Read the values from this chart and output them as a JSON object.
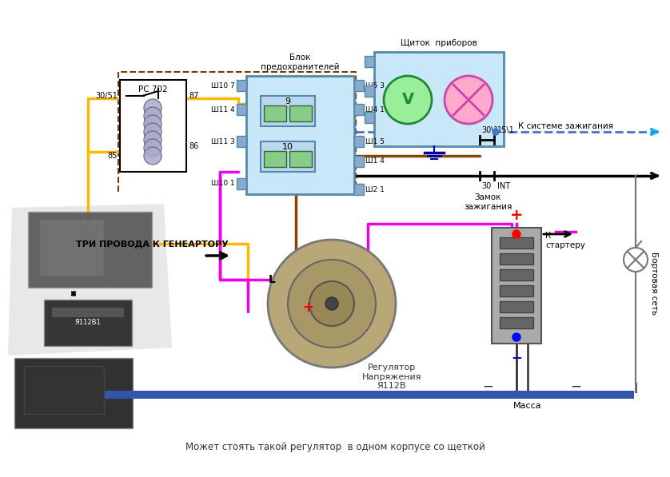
{
  "bg_color": "#ffffff",
  "fig_width": 8.38,
  "fig_height": 5.97,
  "text_blok": "Блок\nпредохранителей",
  "text_schitok": "Щиток  приборов",
  "text_relay": "РС 702",
  "text_tri": "ТРИ ПРОВОДА К ГЕНЕАРТОРУ",
  "text_regulyator": "Регулятор\nНапряжения\nЯ112В",
  "text_massa": "Масса",
  "text_zamok_label": "Замок\nзажигания",
  "text_k_sisteme": "К системе зажигания",
  "text_k_starteru": "К\nстартеру",
  "text_bortovaya": "Бортовая сеть",
  "text_mozhet": "Может стоять такой регулятор  в одном корпусе со щеткой",
  "yellow": "#FFB800",
  "brown": "#884400",
  "brown_dark": "#7B3800",
  "magenta": "#EE00EE",
  "blue_dash": "#4477CC",
  "blue_arrow": "#00AAFF",
  "black": "#000000",
  "light_blue": "#c8e8f8",
  "mid_blue": "#5588aa",
  "green_fill": "#88cc88",
  "pink_fill": "#ffaacc",
  "red": "#ff0000",
  "blue_bar": "#3355aa",
  "batt_gray": "#999999",
  "batt_dark": "#777777",
  "photo_gray": "#888888"
}
